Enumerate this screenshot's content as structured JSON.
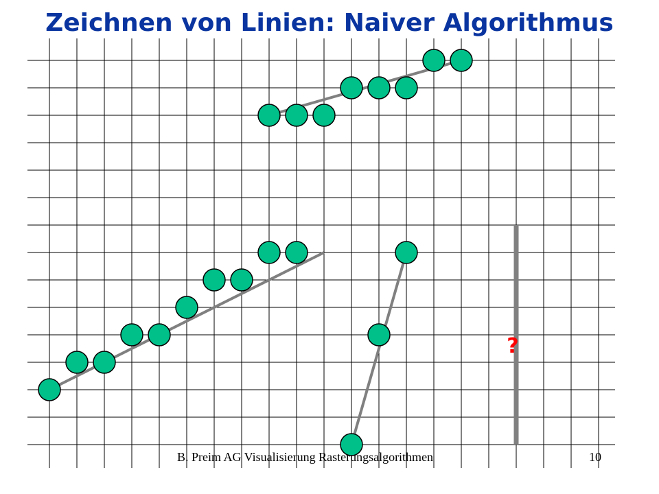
{
  "slide": {
    "title": "Zeichnen von Linien: Naiver Algorithmus",
    "footer_text": "B. Preim AG Visualisierung Rasterungsalgorithmen",
    "page_number": "10"
  },
  "grid": {
    "columns": 21,
    "rows": 15,
    "line_color": "#000000"
  },
  "colors": {
    "title": "#0a35a0",
    "pixel_fill": "#00c08a",
    "pixel_stroke": "#000000",
    "line": "#808080",
    "question_mark": "#ff0000"
  },
  "lines": [
    {
      "name": "flat-upper-line",
      "from": [
        8,
        2
      ],
      "to": [
        15,
        0
      ],
      "pixels": [
        [
          8,
          2
        ],
        [
          9,
          2
        ],
        [
          10,
          2
        ],
        [
          11,
          1
        ],
        [
          12,
          1
        ],
        [
          13,
          1
        ],
        [
          14,
          0
        ],
        [
          15,
          0
        ]
      ]
    },
    {
      "name": "moderate-lower-line",
      "from": [
        0,
        12
      ],
      "to": [
        10,
        7
      ],
      "pixels": [
        [
          0,
          12
        ],
        [
          1,
          11
        ],
        [
          2,
          11
        ],
        [
          3,
          10
        ],
        [
          4,
          10
        ],
        [
          5,
          9
        ],
        [
          6,
          8
        ],
        [
          7,
          8
        ],
        [
          8,
          7
        ],
        [
          9,
          7
        ]
      ]
    },
    {
      "name": "steep-line",
      "from": [
        11,
        14
      ],
      "to": [
        13,
        7
      ],
      "pixels": [
        [
          11,
          14
        ],
        [
          12,
          10
        ],
        [
          13,
          7
        ]
      ]
    },
    {
      "name": "vertical-line",
      "from": [
        17,
        6
      ],
      "to": [
        17,
        14
      ],
      "pixels": [],
      "label": "?"
    }
  ]
}
